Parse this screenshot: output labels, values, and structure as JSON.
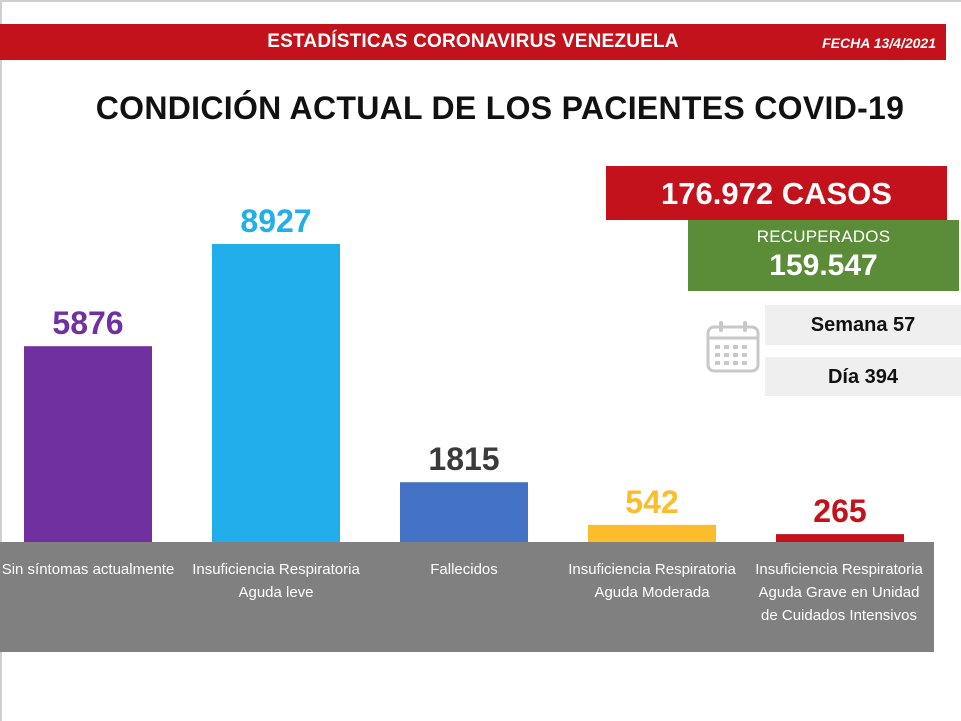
{
  "header": {
    "title": "ESTADÍSTICAS CORONAVIRUS VENEZUELA",
    "date": "FECHA 13/4/2021"
  },
  "summary": {
    "total_cases": "176.972 CASOS",
    "recovered_label": "RECUPERADOS",
    "recovered_value": "159.547",
    "week": "Semana 57",
    "day": "Día 394",
    "calendar_icon": "calendar-icon"
  },
  "colors": {
    "header_red": "#c3121b",
    "recovered_green": "#5b8c37",
    "band_gray": "#808080"
  },
  "chart_data": {
    "type": "bar",
    "title": "CONDICIÓN ACTUAL DE LOS PACIENTES COVID-19",
    "categories": [
      "Sin síntomas actualmente",
      "Insuficiencia Respiratoria Aguda leve",
      "Fallecidos",
      "Insuficiencia Respiratoria Aguda Moderada",
      "Insuficiencia Respiratoria Aguda Grave en Unidad de Cuidados Intensivos"
    ],
    "values": [
      5876,
      8927,
      1815,
      542,
      265
    ],
    "value_labels": [
      "5876",
      "8927",
      "1815",
      "542",
      "265"
    ],
    "colors": [
      "#7030a0",
      "#21aeea",
      "#4472c4",
      "#fbbd2c",
      "#c3121b"
    ],
    "label_colors": [
      "#7030a0",
      "#21aeea",
      "#3a3a3a",
      "#fbbd2c",
      "#c3121b"
    ],
    "xlabel": "",
    "ylabel": "",
    "ylim": [
      0,
      8927
    ]
  }
}
